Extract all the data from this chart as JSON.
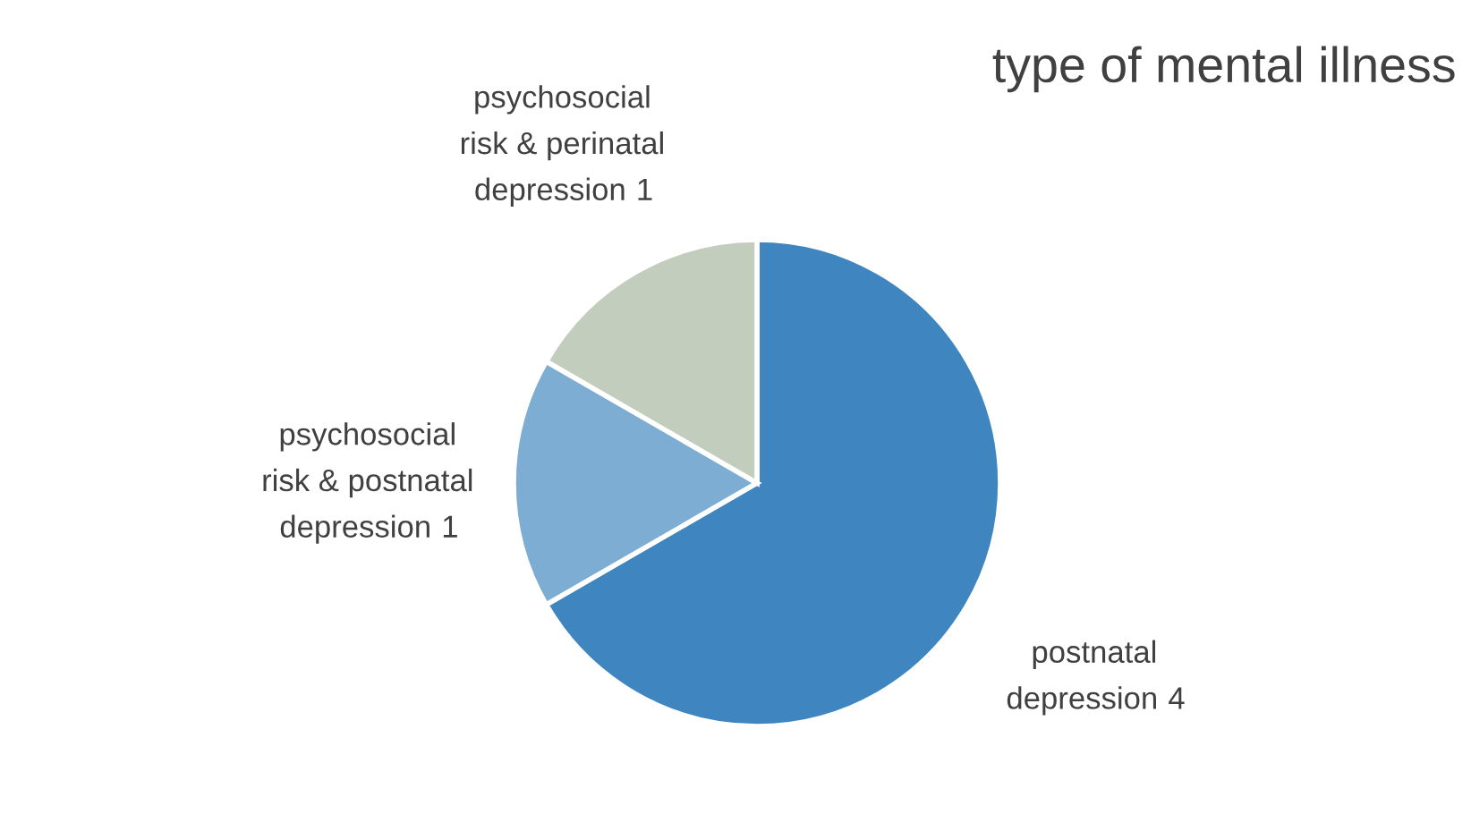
{
  "chart_data": {
    "type": "pie",
    "title": "type of mental illness",
    "categories": [
      "postnatal depression",
      "psychosocial risk & postnatal depression",
      "psychosocial risk & perinatal depression"
    ],
    "values": [
      4,
      1,
      1
    ],
    "colors": [
      "#3f86c0",
      "#7eadd4",
      "#c2cdbd"
    ],
    "value_labels": [
      "4",
      "1",
      "1"
    ],
    "legend": false
  }
}
